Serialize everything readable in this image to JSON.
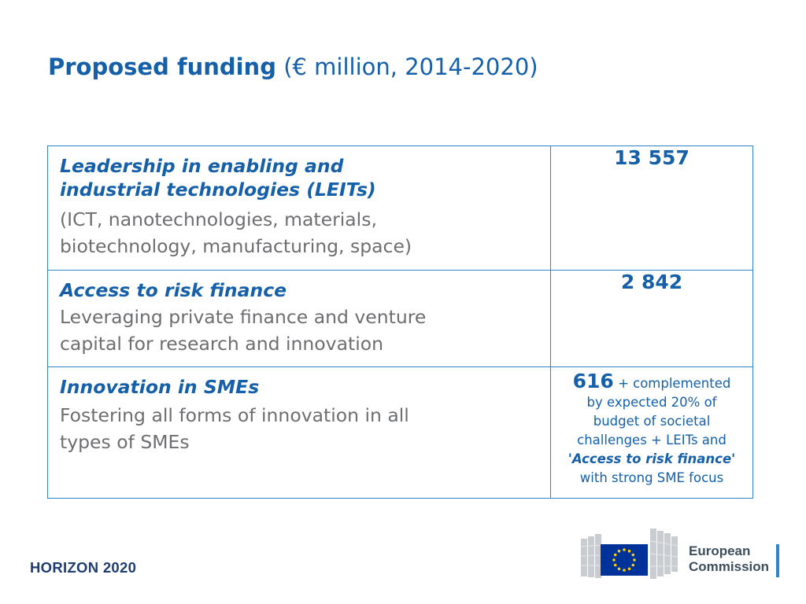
{
  "title": {
    "bold": "Proposed funding",
    "rest": "(€ million, 2014-2020)"
  },
  "rows": [
    {
      "title_line1": "Leadership in enabling and",
      "title_line2": "industrial technologies (LEITs)",
      "sub_line1": "(ICT, nanotechnologies, materials,",
      "sub_line2": "biotechnology, manufacturing, space)",
      "amount": "13 557"
    },
    {
      "title_line1": "Access to risk finance",
      "sub_line1": "Leveraging private finance and venture",
      "sub_line2": "capital for research and innovation",
      "amount": "2 842"
    },
    {
      "title_line1": "Innovation in SMEs",
      "sub_line1": "Fostering all forms of innovation in all",
      "sub_line2": "types of SMEs",
      "amount": "616",
      "note_line1": "+ complemented",
      "note_line2": "by expected 20% of",
      "note_line3": "budget of societal",
      "note_line4": "challenges + LEITs and",
      "note_emph": "'Access to risk finance'",
      "note_line6": "with strong SME focus"
    }
  ],
  "footer": {
    "brand": "HORIZON 2020",
    "logo_line1": "European",
    "logo_line2": "Commission"
  },
  "colors": {
    "accent": "#1560a8",
    "border": "#2e86c8",
    "grey_text": "#6d6e71",
    "eu_flag": "#003399",
    "eu_stars": "#ffcc00"
  },
  "icons": {
    "logo": "european-commission-logo-icon",
    "flag": "eu-flag-icon"
  }
}
